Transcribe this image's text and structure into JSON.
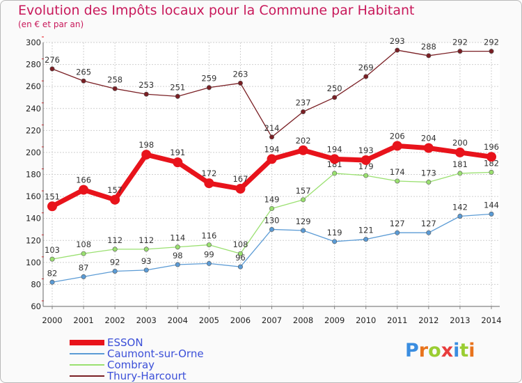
{
  "header": {
    "title": "Evolution des Impôts locaux pour la Commune par Habitant",
    "subtitle": "(en € et par an)"
  },
  "logo": {
    "text": "Proxiti",
    "colors": [
      "#3a8de0",
      "#e8731c",
      "#9acd32",
      "#e83d3d",
      "#3a8de0",
      "#9acd32",
      "#e8731c"
    ]
  },
  "chart_data": {
    "type": "line",
    "x": [
      "2000",
      "2001",
      "2002",
      "2003",
      "2004",
      "2005",
      "2006",
      "2007",
      "2008",
      "2009",
      "2010",
      "2011",
      "2012",
      "2013",
      "2014"
    ],
    "ylim": [
      60,
      300
    ],
    "yticks": [
      "60",
      "80",
      "100",
      "120",
      "140",
      "160",
      "180",
      "200",
      "220",
      "240",
      "260",
      "280",
      "300"
    ],
    "grid": true,
    "legend_position": "bottom-left",
    "series": [
      {
        "name": "Thury-Harcourt",
        "color": "#7a1f24",
        "values": [
          276,
          265,
          258,
          253,
          251,
          259,
          263,
          214,
          237,
          250,
          269,
          293,
          288,
          292,
          292
        ]
      },
      {
        "name": "Combray",
        "color": "#9ae070",
        "values": [
          103,
          108,
          112,
          112,
          114,
          116,
          108,
          149,
          157,
          181,
          179,
          174,
          173,
          181,
          182
        ]
      },
      {
        "name": "Caumont-sur-Orne",
        "color": "#5b9bd5",
        "values": [
          82,
          87,
          92,
          93,
          98,
          99,
          96,
          130,
          129,
          119,
          121,
          127,
          127,
          142,
          144
        ]
      },
      {
        "name": "ESSON",
        "color": "#e8131b",
        "values": [
          151,
          166,
          157,
          198,
          191,
          172,
          167,
          194,
          202,
          194,
          193,
          206,
          204,
          200,
          196
        ]
      }
    ]
  }
}
